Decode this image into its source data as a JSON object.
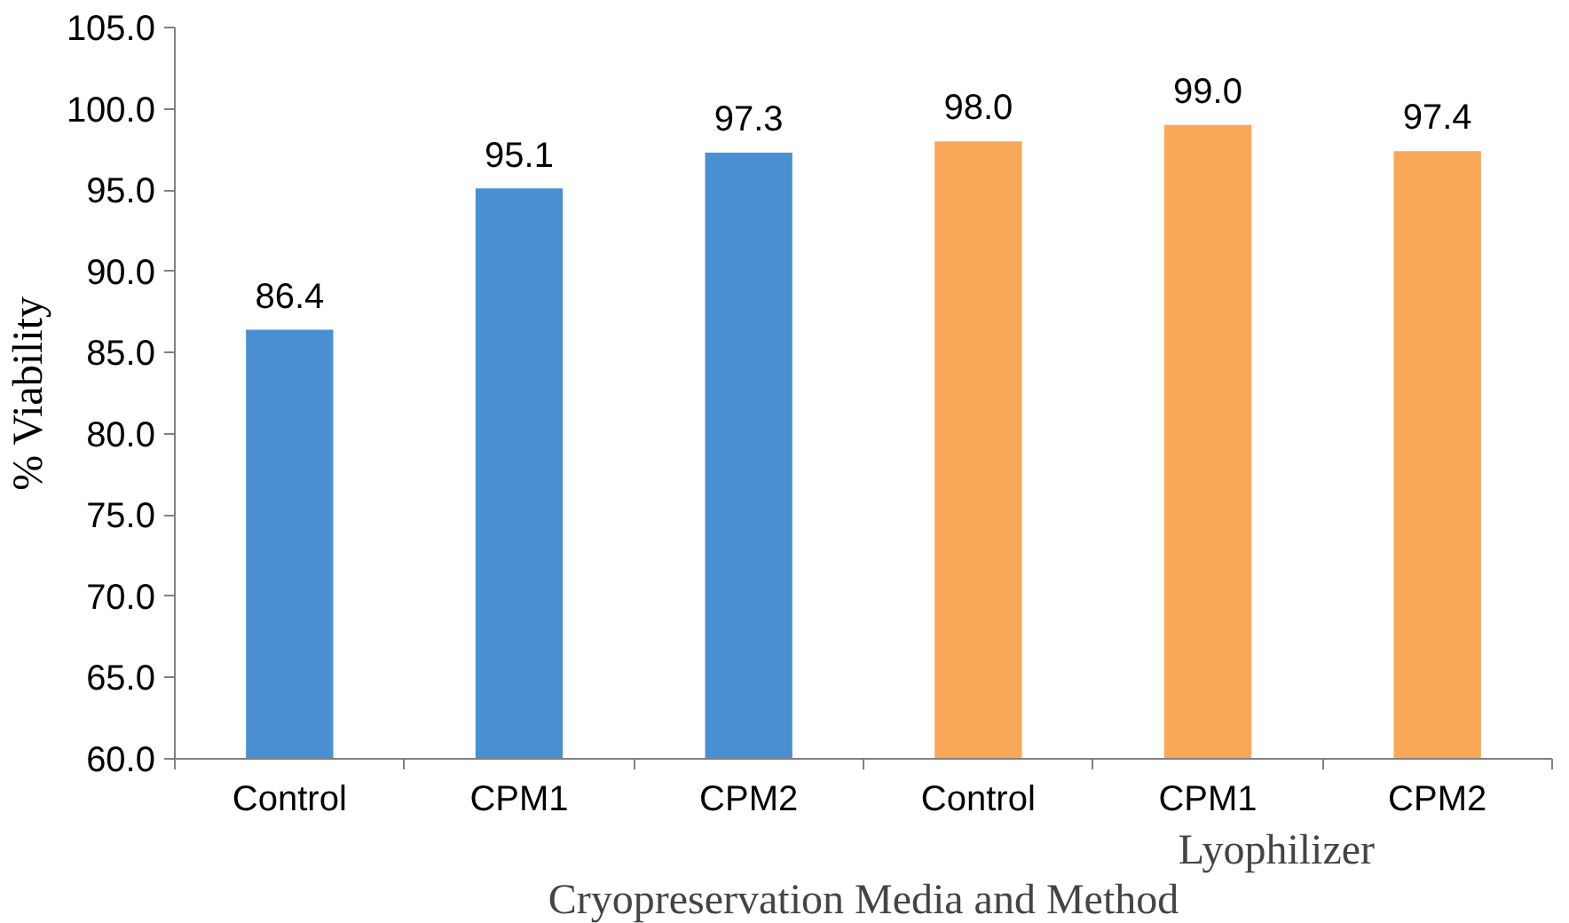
{
  "chart_data": {
    "type": "bar",
    "xlabel": "Cryopreservation Media and Method",
    "ylabel": "% Viability",
    "categories": [
      "Control",
      "CPM1",
      "CPM2",
      "Control",
      "CPM1",
      "CPM2"
    ],
    "values": [
      86.4,
      95.1,
      97.3,
      98.0,
      99.0,
      97.4
    ],
    "value_labels": [
      "86.4",
      "95.1",
      "97.3",
      "98.0",
      "99.0",
      "97.4"
    ],
    "colors": [
      "#4a8fd4",
      "#4a8fd4",
      "#4a8fd4",
      "#f8a857",
      "#f8a857",
      "#f8a857"
    ],
    "ylim": [
      60,
      105
    ],
    "yticks": [
      {
        "value": 60,
        "label": "60.0"
      },
      {
        "value": 65,
        "label": "65.0"
      },
      {
        "value": 70,
        "label": "70.0"
      },
      {
        "value": 75,
        "label": "75.0"
      },
      {
        "value": 80,
        "label": "80.0"
      },
      {
        "value": 85,
        "label": "85.0"
      },
      {
        "value": 90,
        "label": "90.0"
      },
      {
        "value": 95,
        "label": "95.0"
      },
      {
        "value": 100,
        "label": "100.0"
      },
      {
        "value": 105,
        "label": "105.0"
      }
    ],
    "annotations": [
      "Lyophilizer"
    ]
  }
}
